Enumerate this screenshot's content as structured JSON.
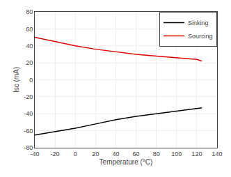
{
  "chart_data": {
    "type": "line",
    "xlabel": "Temperature (°C)",
    "ylabel": "Isc (mA)",
    "x": [
      -40,
      0,
      20,
      40,
      60,
      80,
      100,
      120,
      125
    ],
    "series": [
      {
        "name": "Sinking",
        "color": "#000000",
        "values": [
          -65,
          -57,
          -52,
          -47,
          -43,
          -40,
          -37,
          -34,
          -33
        ]
      },
      {
        "name": "Sourcing",
        "color": "#dd0000",
        "values": [
          50,
          40,
          36,
          33,
          30,
          28,
          26,
          24,
          22
        ]
      }
    ],
    "xlim": [
      -40,
      140
    ],
    "ylim": [
      -80,
      80
    ],
    "xticks": [
      -40,
      -20,
      0,
      20,
      40,
      60,
      80,
      100,
      120,
      140
    ],
    "yticks": [
      -80,
      -60,
      -40,
      -20,
      0,
      20,
      40,
      60,
      80
    ],
    "grid": true,
    "legend": "upper right"
  }
}
